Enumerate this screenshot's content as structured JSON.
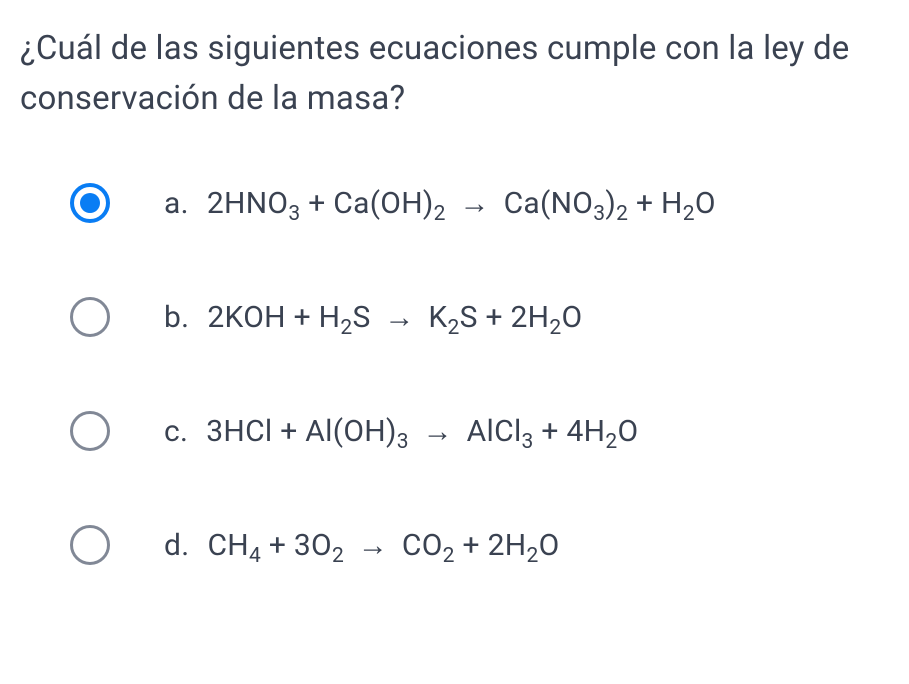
{
  "question": {
    "text": "¿Cuál de las siguientes ecuaciones cumple con la ley de conservación de la masa?",
    "text_color": "#3a4251",
    "font_size": 33
  },
  "options": [
    {
      "letter": "a.",
      "selected": true,
      "formula": {
        "lhs": [
          {
            "coef": "2",
            "base": "HNO",
            "sub": "3"
          },
          {
            "op": "+"
          },
          {
            "base": "Ca(OH)",
            "sub": "2"
          }
        ],
        "rhs": [
          {
            "base": "Ca(NO",
            "sub": "3",
            "tail": ")",
            "sub2": "2"
          },
          {
            "op": "+"
          },
          {
            "base": "H",
            "sub": "2",
            "tail": "O"
          }
        ]
      }
    },
    {
      "letter": "b.",
      "selected": false,
      "formula": {
        "lhs": [
          {
            "coef": "2",
            "base": "KOH"
          },
          {
            "op": "+"
          },
          {
            "base": "H",
            "sub": "2",
            "tail": "S"
          }
        ],
        "rhs": [
          {
            "base": "K",
            "sub": "2",
            "tail": "S"
          },
          {
            "op": "+"
          },
          {
            "coef": "2",
            "base": "H",
            "sub": "2",
            "tail": "O"
          }
        ]
      }
    },
    {
      "letter": "c.",
      "selected": false,
      "formula": {
        "lhs": [
          {
            "coef": "3",
            "base": "HCl"
          },
          {
            "op": "+"
          },
          {
            "base": "Al(OH)",
            "sub": "3"
          }
        ],
        "rhs": [
          {
            "base": "AlCl",
            "sub": "3"
          },
          {
            "op": "+"
          },
          {
            "coef": "4",
            "base": "H",
            "sub": "2",
            "tail": "O"
          }
        ]
      }
    },
    {
      "letter": "d.",
      "selected": false,
      "formula": {
        "lhs": [
          {
            "base": "CH",
            "sub": "4"
          },
          {
            "op": "+"
          },
          {
            "coef": "3",
            "base": "O",
            "sub": "2"
          }
        ],
        "rhs": [
          {
            "base": "CO",
            "sub": "2"
          },
          {
            "op": "+"
          },
          {
            "coef": "2",
            "base": "H",
            "sub": "2",
            "tail": "O"
          }
        ]
      }
    }
  ],
  "styling": {
    "radio_checked_color": "#097df4",
    "radio_unchecked_color": "#818896",
    "background_color": "#ffffff",
    "option_font_size": 30,
    "arrow_glyph": "→"
  }
}
